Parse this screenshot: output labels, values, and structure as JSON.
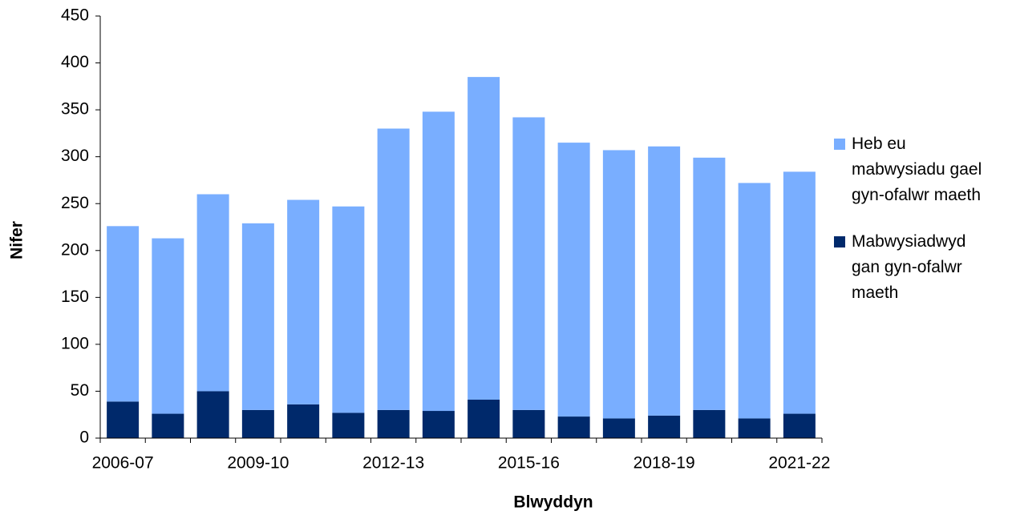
{
  "chart_data": {
    "type": "bar",
    "stacked": true,
    "x_label": "Blwyddyn",
    "y_label": "Nifer",
    "categories": [
      "2006-07",
      null,
      null,
      "2009-10",
      null,
      null,
      "2012-13",
      null,
      null,
      "2015-16",
      null,
      null,
      "2018-19",
      null,
      null,
      "2021-22"
    ],
    "series": [
      {
        "name": "Heb eu mabwysiadu gael gyn-ofalwr maeth",
        "color": "#79aeff",
        "values": [
          187,
          187,
          210,
          199,
          218,
          220,
          300,
          319,
          344,
          312,
          292,
          286,
          287,
          269,
          251,
          258
        ]
      },
      {
        "name": "Mabwysiadwyd gan gyn-ofalwr maeth",
        "color": "#00296b",
        "values": [
          39,
          26,
          50,
          30,
          36,
          27,
          30,
          29,
          41,
          30,
          23,
          21,
          24,
          30,
          21,
          26
        ]
      }
    ],
    "ylim": [
      0,
      450
    ],
    "yticks": [
      0,
      50,
      100,
      150,
      200,
      250,
      300,
      350,
      400,
      450
    ],
    "grid": false,
    "legend": "right"
  }
}
